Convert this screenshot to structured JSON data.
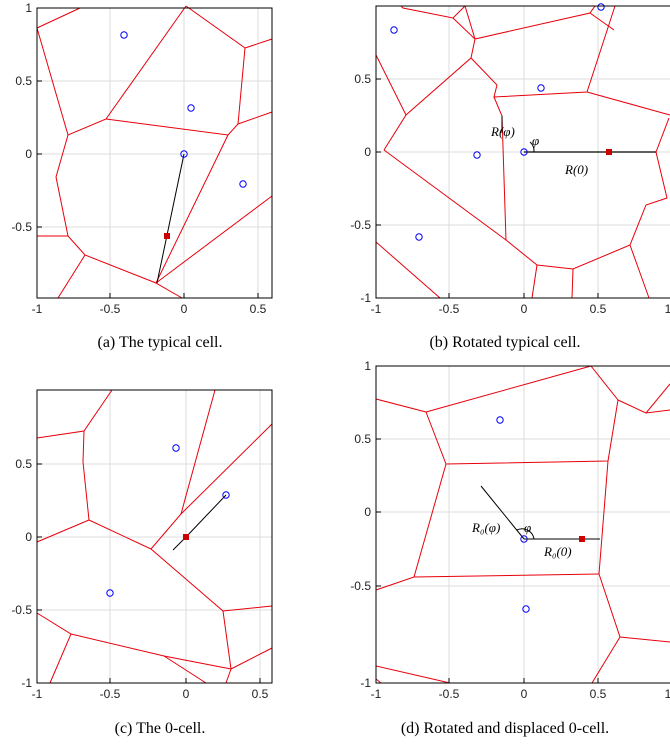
{
  "colors": {
    "cell_edge": "#e8000b",
    "point": "#0000ff",
    "marker": "#cc0000",
    "grid": "#dddddd",
    "axis": "#000000",
    "segment": "#000000"
  },
  "panels": [
    {
      "id": "a",
      "caption": "(a) The typical cell.",
      "xticks": [
        "-1",
        "-0.5",
        "0",
        "0.5"
      ],
      "yticks": [
        "1",
        "0.5",
        "0",
        "-0.5"
      ],
      "annotations": []
    },
    {
      "id": "b",
      "caption": "(b) Rotated typical cell.",
      "xticks": [
        "-1",
        "-0.5",
        "0",
        "0.5",
        "1"
      ],
      "yticks": [
        "0.5",
        "0",
        "-0.5",
        "-1"
      ],
      "annotations": [
        "R(φ)",
        "φ",
        "R(0)"
      ]
    },
    {
      "id": "c",
      "caption": "(c) The 0-cell.",
      "xticks": [
        "-1",
        "-0.5",
        "0",
        "0.5"
      ],
      "yticks": [
        "0.5",
        "0",
        "-0.5",
        "-1"
      ],
      "annotations": []
    },
    {
      "id": "d",
      "caption": "(d) Rotated and displaced 0-cell.",
      "xticks": [
        "-1",
        "-0.5",
        "0",
        "0.5",
        "1"
      ],
      "yticks": [
        "1",
        "0.5",
        "0",
        "-0.5",
        "-1"
      ],
      "annotations": [
        "R₀(φ)",
        "φ",
        "R₀(0)"
      ]
    }
  ]
}
